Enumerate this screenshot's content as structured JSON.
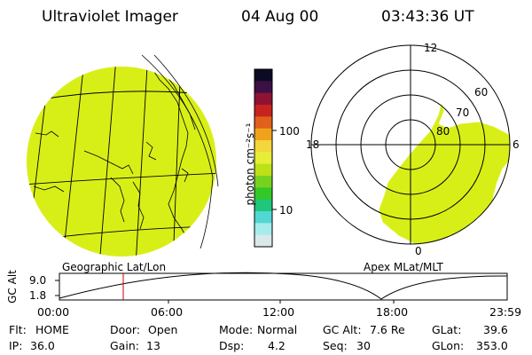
{
  "header": {
    "instrument": "Ultraviolet Imager",
    "date": "04 Aug 00",
    "time": "03:43:36 UT"
  },
  "colors": {
    "fill": "#d8ef17",
    "line": "#000000",
    "marker": "#cc0000"
  },
  "colorbar": {
    "unit_label": "photon cm⁻²s⁻¹",
    "ticks": [
      "100",
      "10"
    ],
    "colors": [
      "#d9e8e8",
      "#a6ecec",
      "#52d7d4",
      "#1ec77b",
      "#33c827",
      "#77d21f",
      "#bde016",
      "#e6ee35",
      "#f4d53c",
      "#f0a21a",
      "#e1601b",
      "#c8231f",
      "#8e1333",
      "#3c0f46",
      "#0b0b24"
    ]
  },
  "geo_panel": {
    "label": "Geographic Lat/Lon"
  },
  "polar_panel": {
    "label": "Apex MLat/MLT",
    "mlt_labels": {
      "top": "12",
      "left": "18",
      "right": "6",
      "bottom": "0"
    },
    "lat_labels": [
      "60",
      "70",
      "80"
    ]
  },
  "altitude_plot": {
    "ylabel": "GC Alt",
    "yticks": [
      "9.0",
      "1.8"
    ],
    "xticks": [
      "00:00",
      "06:00",
      "12:00",
      "18:00",
      "23:59"
    ],
    "current_time_marker": "03:43"
  },
  "info": {
    "flt_label": "Flt:",
    "flt_value": "HOME",
    "ip_label": "IP:",
    "ip_value": "36.0",
    "door_label": "Door:",
    "door_value": "Open",
    "gain_label": "Gain:",
    "gain_value": "13",
    "mode_label": "Mode:",
    "mode_value": "Normal",
    "dsp_label": "Dsp:",
    "dsp_value": "4.2",
    "gcalt_label": "GC Alt:",
    "gcalt_value": "7.6 Re",
    "seq_label": "Seq:",
    "seq_value": "30",
    "glat_label": "GLat:",
    "glat_value": "39.6",
    "glon_label": "GLon:",
    "glon_value": "353.0"
  }
}
